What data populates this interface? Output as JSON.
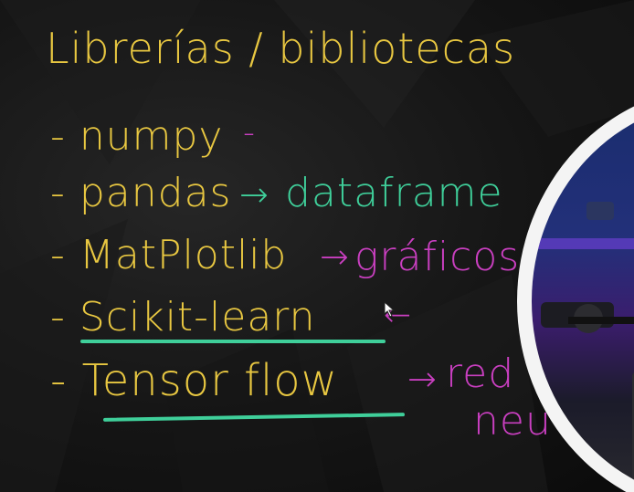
{
  "board": {
    "title": "Librerías / bibliotecas",
    "items": [
      {
        "bullet": "- numpy",
        "arrow": "",
        "note": "-"
      },
      {
        "bullet": "- pandas",
        "arrow": "→",
        "note": "dataframe"
      },
      {
        "bullet": "- MatPlotlib",
        "arrow": "→",
        "note": "gráficos"
      },
      {
        "bullet": "- Scikit-learn",
        "arrow": "←",
        "note": ""
      },
      {
        "bullet": "- Tensor flow",
        "arrow": "→",
        "note": "red",
        "note2": "neu"
      }
    ]
  },
  "colors": {
    "yellow": "#e8c741",
    "green": "#3fcf9a",
    "pink": "#c93fc0",
    "frame": "#f4f4f4"
  },
  "icons": {
    "cursor": "pen-cursor-icon"
  }
}
